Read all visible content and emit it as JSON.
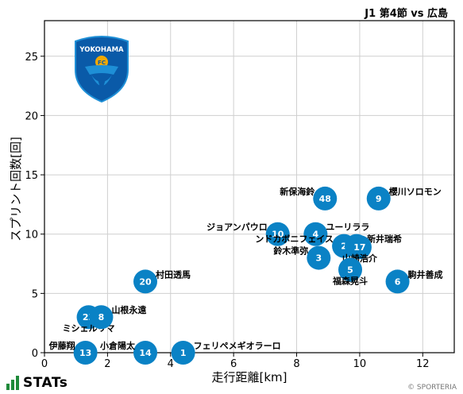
{
  "header": {
    "match": "J1 第4節 vs 広島"
  },
  "branding": {
    "stats": "STATs",
    "copyright": "© SPORTERIA"
  },
  "team": {
    "logo_text": "YOKOHAMA",
    "logo_badge": "FC"
  },
  "colors": {
    "dot": "#0a82c5",
    "text_on_dot": "#ffffff",
    "grid": "#cfcfcf"
  },
  "chart_data": {
    "type": "scatter",
    "xlabel": "走行距離[km]",
    "ylabel": "スプリント回数[回]",
    "xlim": [
      0,
      13
    ],
    "ylim": [
      0,
      28
    ],
    "xticks": [
      0,
      2,
      4,
      6,
      8,
      10,
      12
    ],
    "yticks": [
      0,
      5,
      10,
      15,
      20,
      25
    ],
    "grid": true,
    "points": [
      {
        "num": "48",
        "name": "新保海鈴",
        "x": 8.9,
        "y": 13,
        "label_side": "left"
      },
      {
        "num": "9",
        "name": "櫻川ソロモン",
        "x": 10.6,
        "y": 13,
        "label_side": "right"
      },
      {
        "num": "10",
        "name": "ジョアンパウロ",
        "x": 7.4,
        "y": 10,
        "label_side": "left"
      },
      {
        "num": "4",
        "name": "ユーリララ",
        "x": 8.6,
        "y": 10,
        "label_side": "right"
      },
      {
        "num": "2",
        "name": "ンドカボニフェイス",
        "x": 9.5,
        "y": 9,
        "label_side": "left"
      },
      {
        "num": "30",
        "name": "新井瑞希",
        "x": 9.9,
        "y": 9,
        "label_side": "right"
      },
      {
        "num": "17",
        "name": "山崎浩介",
        "x": 10.0,
        "y": 8.9,
        "label_side": "below"
      },
      {
        "num": "3",
        "name": "鈴木準弥",
        "x": 8.7,
        "y": 8,
        "label_side": "left"
      },
      {
        "num": "5",
        "name": "福森晃斗",
        "x": 9.7,
        "y": 7,
        "label_side": "below"
      },
      {
        "num": "6",
        "name": "駒井善成",
        "x": 11.2,
        "y": 6,
        "label_side": "right"
      },
      {
        "num": "20",
        "name": "村田透馬",
        "x": 3.2,
        "y": 6,
        "label_side": "right"
      },
      {
        "num": "23",
        "name": "ミシェルリマ",
        "x": 1.4,
        "y": 3,
        "label_side": "below"
      },
      {
        "num": "8",
        "name": "山根永遠",
        "x": 1.8,
        "y": 3,
        "label_side": "right"
      },
      {
        "num": "13",
        "name": "伊藤翔",
        "x": 1.3,
        "y": 0,
        "label_side": "left"
      },
      {
        "num": "14",
        "name": "小倉陽太",
        "x": 3.2,
        "y": 0,
        "label_side": "left"
      },
      {
        "num": "1",
        "name": "フェリペメギオラーロ",
        "x": 4.4,
        "y": 0,
        "label_side": "right"
      }
    ]
  }
}
